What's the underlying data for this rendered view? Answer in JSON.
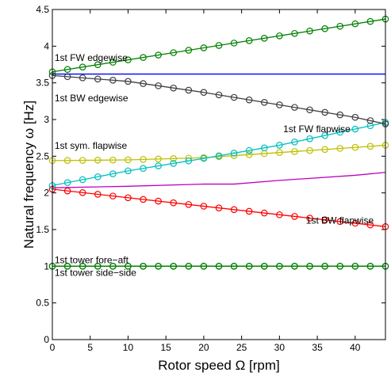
{
  "chart_data": {
    "type": "line",
    "xlabel": "Rotor speed Ω [rpm]",
    "ylabel": "Natural frequency ω [Hz]",
    "xlim": [
      0,
      44
    ],
    "ylim": [
      0,
      4.5
    ],
    "xticks": [
      "0",
      "5",
      "10",
      "15",
      "20",
      "25",
      "30",
      "35",
      "40"
    ],
    "yticks": [
      "0",
      "0.5",
      "1",
      "1.5",
      "2",
      "2.5",
      "3",
      "3.5",
      "4",
      "4.5"
    ],
    "grid": false,
    "legend": "none",
    "marker_x": [
      0,
      2,
      4,
      6,
      8,
      10,
      12,
      14,
      16,
      18,
      20,
      22,
      24,
      26,
      28,
      30,
      32,
      34,
      36,
      38,
      40,
      42,
      44
    ],
    "series": [
      {
        "color": "#008000",
        "marker": "circle",
        "x": [
          0,
          44
        ],
        "y": [
          1.0,
          1.0
        ]
      },
      {
        "color": "#008000",
        "marker": "circle",
        "x": [
          0,
          44
        ],
        "y": [
          1.0,
          1.0
        ]
      },
      {
        "color": "#ff0000",
        "marker": "circle",
        "x": [
          0,
          44
        ],
        "y": [
          2.05,
          1.54
        ]
      },
      {
        "color": "#bf00bf",
        "marker": "none",
        "x": [
          0,
          10,
          20,
          24,
          30,
          40,
          44
        ],
        "y": [
          2.07,
          2.09,
          2.12,
          2.12,
          2.17,
          2.24,
          2.28
        ]
      },
      {
        "color": "#bfbf00",
        "marker": "circle",
        "x": [
          0,
          10,
          20,
          30,
          40,
          44
        ],
        "y": [
          2.44,
          2.45,
          2.48,
          2.55,
          2.62,
          2.65
        ]
      },
      {
        "color": "#00bfbf",
        "marker": "circle",
        "x": [
          0,
          10,
          20,
          30,
          40,
          44
        ],
        "y": [
          2.1,
          2.3,
          2.47,
          2.65,
          2.87,
          2.96
        ]
      },
      {
        "color": "#404040",
        "marker": "circle",
        "x": [
          0,
          10,
          20,
          30,
          40,
          44
        ],
        "y": [
          3.6,
          3.52,
          3.37,
          3.2,
          3.03,
          2.94
        ]
      },
      {
        "color": "#0000ff",
        "marker": "none",
        "x": [
          0,
          44
        ],
        "y": [
          3.62,
          3.62
        ]
      },
      {
        "color": "#008000",
        "marker": "circle",
        "x": [
          0,
          44
        ],
        "y": [
          3.65,
          4.37
        ]
      }
    ],
    "annotations": [
      {
        "text": "1st FW edgewise",
        "x": 0.3,
        "y": 3.8
      },
      {
        "text": "1st BW edgewise",
        "x": 0.3,
        "y": 3.25
      },
      {
        "text": "1st FW flapwise",
        "x": 30.5,
        "y": 2.83
      },
      {
        "text": "1st sym. flapwise",
        "x": 0.3,
        "y": 2.6
      },
      {
        "text": "1st BW flapwise",
        "x": 33.5,
        "y": 1.58
      },
      {
        "text": "1st tower fore−aft",
        "x": 0.3,
        "y": 1.04
      },
      {
        "text": "1st tower side−side",
        "x": 0.3,
        "y": 0.87
      }
    ]
  }
}
